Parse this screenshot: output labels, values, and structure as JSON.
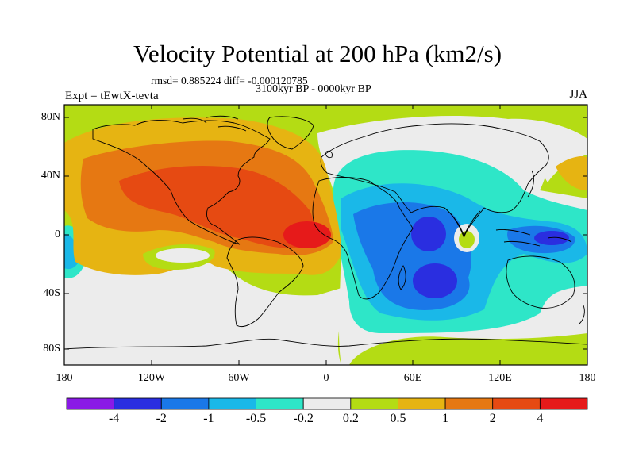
{
  "title": "Velocity Potential at 200 hPa (km2/s)",
  "stats_line": "rmsd= 0.885224 diff= -0.000120785",
  "period_line": "3100kyr BP - 0000kyr BP",
  "experiment_label": "Expt = tEwtX-tevta",
  "season_label": "JJA",
  "lat_ticks": [
    "80N",
    "40N",
    "0",
    "40S",
    "80S"
  ],
  "lon_ticks": [
    "180",
    "120W",
    "60W",
    "0",
    "60E",
    "120E",
    "180"
  ],
  "colorbar": {
    "colors": [
      "#8a1ae6",
      "#2a2ee0",
      "#1a78e8",
      "#1ab8e8",
      "#2ee6c8",
      "#ececec",
      "#b4dc14",
      "#e6b412",
      "#e67812",
      "#e64a12",
      "#e61a1a"
    ],
    "labels": [
      "-4",
      "-2",
      "-1",
      "-0.5",
      "-0.2",
      "0.2",
      "0.5",
      "1",
      "2",
      "4"
    ]
  }
}
